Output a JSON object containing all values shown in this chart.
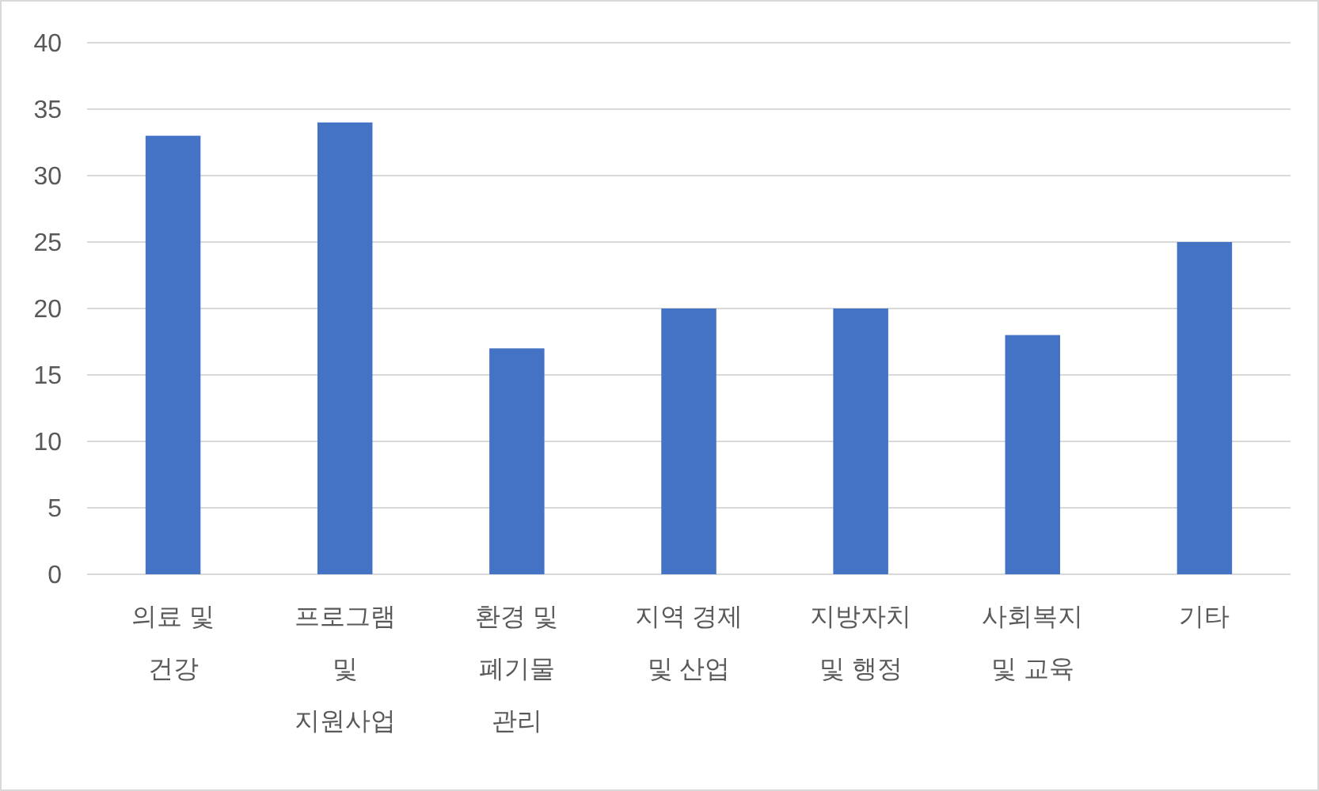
{
  "chart_data": {
    "type": "bar",
    "categories": [
      "의료 및 건강",
      "프로그램 및 지원사업",
      "환경 및 폐기물 관리",
      "지역 경제 및 산업",
      "지방자치 및 행정",
      "사회복지 및 교육",
      "기타"
    ],
    "values": [
      33,
      34,
      17,
      20,
      20,
      18,
      25
    ],
    "color": "#4472c4",
    "ylim": [
      0,
      40
    ],
    "yticks": [
      0,
      5,
      10,
      15,
      20,
      25,
      30,
      35,
      40
    ],
    "grid": "y"
  }
}
